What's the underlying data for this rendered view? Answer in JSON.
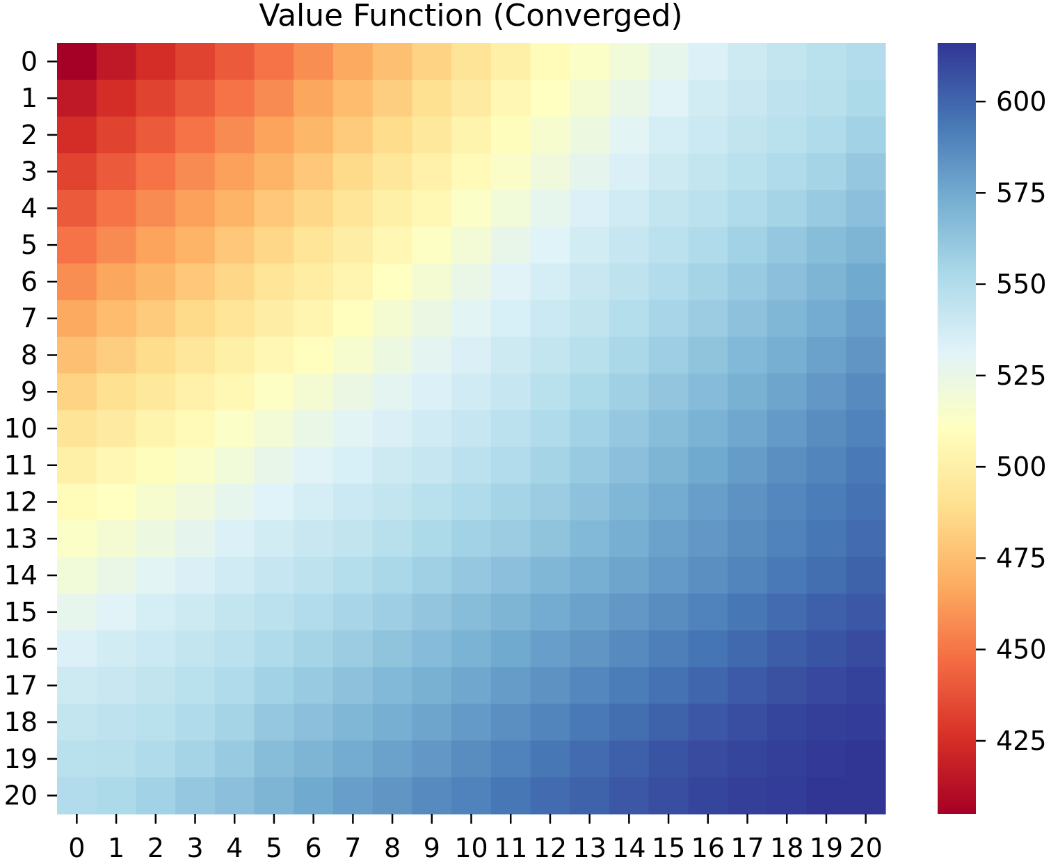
{
  "chart_data": {
    "type": "heatmap",
    "title": "Value Function (Converged)",
    "xlabel": "",
    "ylabel": "",
    "x_categories": [
      "0",
      "1",
      "2",
      "3",
      "4",
      "5",
      "6",
      "7",
      "8",
      "9",
      "10",
      "11",
      "12",
      "13",
      "14",
      "15",
      "16",
      "17",
      "18",
      "19",
      "20"
    ],
    "y_categories": [
      "0",
      "1",
      "2",
      "3",
      "4",
      "5",
      "6",
      "7",
      "8",
      "9",
      "10",
      "11",
      "12",
      "13",
      "14",
      "15",
      "16",
      "17",
      "18",
      "19",
      "20"
    ],
    "colormap": "RdYlBu",
    "colormap_stops": [
      "#a50026",
      "#d73027",
      "#f46d43",
      "#fdae61",
      "#fee090",
      "#ffffbf",
      "#e0f3f8",
      "#abd9e9",
      "#74add1",
      "#4575b4",
      "#313695"
    ],
    "vmin": 405,
    "vmax": 616,
    "colorbar_ticks": [
      425,
      450,
      475,
      500,
      525,
      550,
      575,
      600
    ],
    "colorbar_tick_labels": [
      "425",
      "450",
      "475",
      "500",
      "525",
      "550",
      "575",
      "600"
    ],
    "values": [
      [
        405,
        416,
        425,
        433,
        441,
        449,
        458,
        467,
        476,
        484,
        492,
        500,
        508,
        513,
        520,
        527,
        533,
        539,
        543,
        547,
        550
      ],
      [
        416,
        425,
        433,
        441,
        449,
        457,
        466,
        474,
        482,
        490,
        497,
        505,
        511,
        518,
        525,
        531,
        537,
        541,
        545,
        548,
        552
      ],
      [
        425,
        433,
        441,
        449,
        457,
        465,
        472,
        480,
        488,
        495,
        503,
        509,
        516,
        523,
        530,
        536,
        540,
        544,
        547,
        551,
        556
      ],
      [
        433,
        441,
        449,
        457,
        464,
        471,
        479,
        487,
        494,
        501,
        507,
        514,
        521,
        528,
        534,
        539,
        543,
        547,
        551,
        555,
        561
      ],
      [
        441,
        449,
        457,
        464,
        471,
        479,
        486,
        493,
        500,
        506,
        513,
        520,
        527,
        533,
        538,
        543,
        546,
        551,
        555,
        560,
        565
      ],
      [
        449,
        457,
        465,
        471,
        479,
        486,
        493,
        499,
        505,
        512,
        519,
        526,
        532,
        537,
        542,
        546,
        551,
        556,
        561,
        566,
        570
      ],
      [
        458,
        466,
        472,
        479,
        486,
        493,
        498,
        504,
        511,
        518,
        525,
        531,
        536,
        541,
        545,
        550,
        555,
        560,
        565,
        570,
        575
      ],
      [
        467,
        474,
        480,
        487,
        493,
        499,
        504,
        510,
        517,
        524,
        530,
        535,
        540,
        544,
        549,
        554,
        559,
        564,
        569,
        574,
        579
      ],
      [
        476,
        482,
        488,
        494,
        500,
        505,
        510,
        516,
        523,
        529,
        534,
        539,
        543,
        548,
        553,
        558,
        563,
        568,
        573,
        578,
        583
      ],
      [
        484,
        490,
        495,
        501,
        506,
        512,
        518,
        524,
        529,
        533,
        538,
        542,
        547,
        552,
        557,
        562,
        567,
        572,
        577,
        582,
        587
      ],
      [
        492,
        497,
        503,
        507,
        513,
        519,
        525,
        530,
        534,
        538,
        542,
        546,
        551,
        556,
        561,
        566,
        571,
        576,
        581,
        586,
        590
      ],
      [
        500,
        505,
        509,
        514,
        520,
        526,
        531,
        535,
        539,
        542,
        546,
        550,
        555,
        560,
        565,
        570,
        575,
        580,
        585,
        589,
        593
      ],
      [
        508,
        511,
        516,
        521,
        527,
        532,
        536,
        540,
        543,
        547,
        551,
        555,
        559,
        564,
        569,
        574,
        579,
        584,
        588,
        592,
        596
      ],
      [
        513,
        518,
        523,
        528,
        533,
        537,
        541,
        544,
        548,
        552,
        556,
        559,
        563,
        568,
        573,
        578,
        582,
        586,
        590,
        594,
        598
      ],
      [
        520,
        525,
        530,
        534,
        538,
        542,
        545,
        549,
        553,
        557,
        561,
        565,
        569,
        573,
        577,
        581,
        585,
        589,
        593,
        597,
        601
      ],
      [
        527,
        531,
        536,
        539,
        543,
        546,
        550,
        554,
        558,
        562,
        566,
        570,
        574,
        578,
        582,
        586,
        590,
        594,
        598,
        602,
        605
      ],
      [
        533,
        537,
        540,
        543,
        546,
        551,
        555,
        559,
        563,
        567,
        571,
        575,
        579,
        583,
        587,
        591,
        595,
        599,
        603,
        606,
        609
      ],
      [
        539,
        541,
        544,
        547,
        551,
        556,
        560,
        564,
        568,
        572,
        576,
        580,
        584,
        588,
        592,
        596,
        600,
        604,
        607,
        610,
        612
      ],
      [
        543,
        545,
        547,
        551,
        555,
        561,
        565,
        569,
        573,
        577,
        581,
        585,
        589,
        593,
        597,
        601,
        605,
        608,
        611,
        613,
        614
      ],
      [
        547,
        548,
        551,
        555,
        560,
        566,
        570,
        574,
        578,
        582,
        586,
        590,
        594,
        598,
        602,
        606,
        609,
        611,
        613,
        615,
        616
      ],
      [
        550,
        552,
        556,
        561,
        565,
        570,
        575,
        579,
        583,
        587,
        590,
        594,
        598,
        601,
        605,
        608,
        611,
        613,
        614,
        616,
        616
      ]
    ]
  }
}
